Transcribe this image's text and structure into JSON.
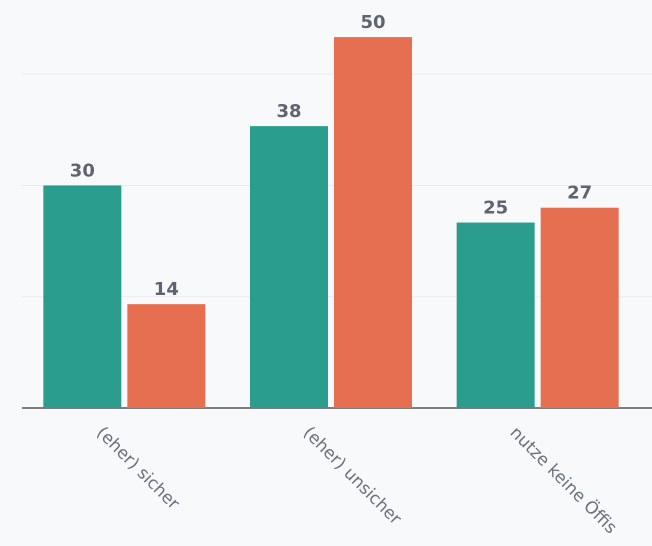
{
  "chart_data": {
    "type": "bar",
    "categories": [
      "(eher) sicher",
      "(eher) unsicher",
      "nutze keine Öffis"
    ],
    "series": [
      {
        "color": "#2a9d8f",
        "values": [
          30,
          38,
          25
        ]
      },
      {
        "color": "#e76f51",
        "values": [
          14,
          50,
          27
        ]
      }
    ],
    "ylim": [
      0,
      55
    ],
    "yticks": [
      0,
      15,
      30,
      45
    ],
    "grid": true
  }
}
